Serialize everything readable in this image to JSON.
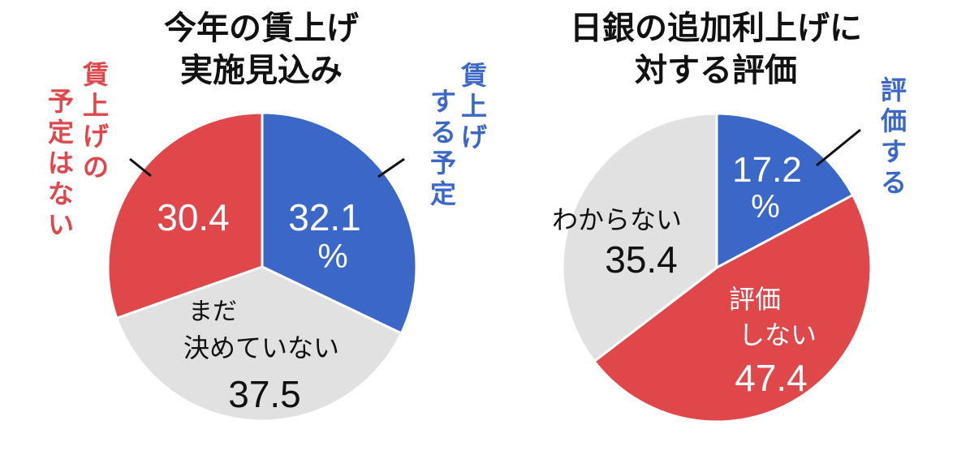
{
  "chart_data": [
    {
      "type": "pie",
      "title_lines": [
        "今年の賃上げ",
        "実施見込み"
      ],
      "slices": [
        {
          "label": "賃上げする予定",
          "value": 32.1,
          "color": "#3b67c8"
        },
        {
          "label": "まだ決めていない",
          "value": 37.5,
          "color": "#e1e1e1"
        },
        {
          "label": "賃上げの予定はない",
          "value": 30.4,
          "color": "#e0474b"
        }
      ],
      "labels": {
        "plan_lines": [
          "賃上げ",
          "する予定"
        ],
        "plan_value": "32.1",
        "plan_unit": "%",
        "undecided_lines": [
          "まだ",
          "決めていない"
        ],
        "undecided_value": "37.5",
        "noplan_lines": [
          "賃上げの",
          "予定はない"
        ],
        "noplan_value": "30.4"
      }
    },
    {
      "type": "pie",
      "title_lines": [
        "日銀の追加利上げに",
        "対する評価"
      ],
      "slices": [
        {
          "label": "評価する",
          "value": 17.2,
          "color": "#3b67c8"
        },
        {
          "label": "評価しない",
          "value": 47.4,
          "color": "#e0474b"
        },
        {
          "label": "わからない",
          "value": 35.4,
          "color": "#e1e1e1"
        }
      ],
      "labels": {
        "approve_text": "評価する",
        "approve_value": "17.2",
        "approve_unit": "%",
        "disapprove_lines": [
          "評価",
          "しない"
        ],
        "disapprove_value": "47.4",
        "unknown_text": "わからない",
        "unknown_value": "35.4"
      }
    }
  ]
}
